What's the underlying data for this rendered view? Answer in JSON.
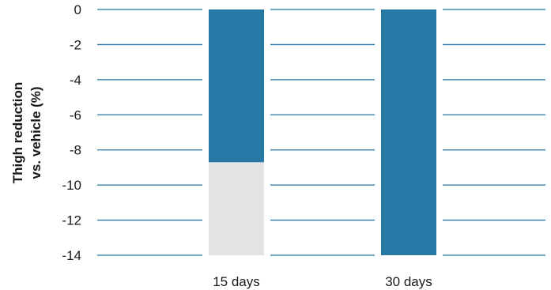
{
  "chart_data": {
    "type": "bar",
    "categories": [
      "15 days",
      "30 days"
    ],
    "ylabel_line1": "Thigh reduction",
    "ylabel_line2": "vs. vehicle (%)",
    "ylim": [
      -14,
      0
    ],
    "yticks": [
      0,
      -2,
      -4,
      -6,
      -8,
      -10,
      -12,
      -14
    ],
    "ytick_labels": [
      "0",
      "-2",
      "-4",
      "-6",
      "-8",
      "-10",
      "-12",
      "-14"
    ],
    "grid": true,
    "colors": {
      "bar": "#2679a4",
      "bar_remainder": "#e2e3e2",
      "grid": "#2679a4",
      "text": "#1a1a1a"
    },
    "series": [
      {
        "values": [
          -8.7,
          -14
        ]
      }
    ],
    "remainder_to": [
      -14,
      -14
    ]
  }
}
